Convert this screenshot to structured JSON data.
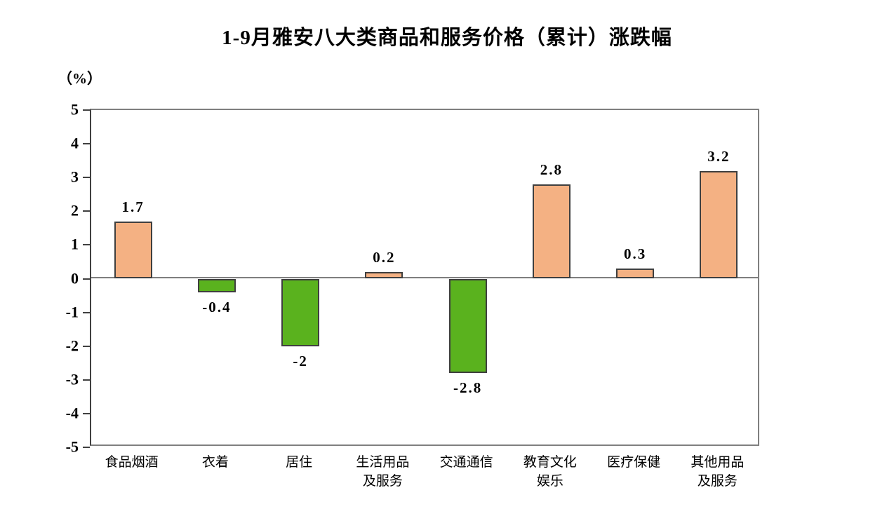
{
  "chart_data": {
    "type": "bar",
    "title": "1-9月雅安八大类商品和服务价格（累计）涨跌幅",
    "unit_label": "（%）",
    "categories": [
      "食品烟酒",
      "衣着",
      "居住",
      "生活用品\n及服务",
      "交通通信",
      "教育文化\n娱乐",
      "医疗保健",
      "其他用品\n及服务"
    ],
    "values": [
      1.7,
      -0.4,
      -2,
      0.2,
      -2.8,
      2.8,
      0.3,
      3.2
    ],
    "value_labels": [
      "1.7",
      "-0.4",
      "-2",
      "0.2",
      "-2.8",
      "2.8",
      "0.3",
      "3.2"
    ],
    "xlabel": "",
    "ylabel": "（%）",
    "ylim": [
      -5,
      5
    ],
    "y_ticks": [
      5,
      4,
      3,
      2,
      1,
      0,
      -1,
      -2,
      -3,
      -4,
      -5
    ],
    "grid": "off",
    "legend": "none",
    "colors": {
      "positive_bar": "#F4B183",
      "negative_bar": "#5AB21E",
      "bar_border": "#3F3F3F",
      "axis_line": "#404040",
      "frame_line": "#7F7F7F",
      "text": "#000000",
      "background": "#FFFFFF"
    }
  }
}
